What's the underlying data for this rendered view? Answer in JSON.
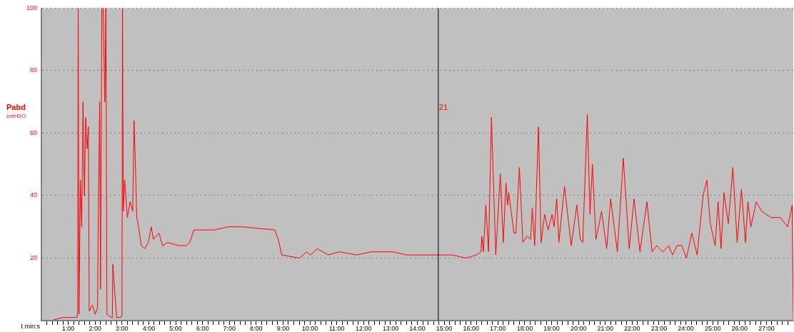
{
  "chart_data": {
    "type": "line",
    "ylabel": "Pabd",
    "xlabel": "t min:s",
    "annotations": [
      "cmH2O",
      {
        "text": "21",
        "x": 14.78,
        "y": 68
      }
    ],
    "x": [
      0.36,
      0.8,
      1.0,
      1.32,
      1.35,
      1.37,
      1.4,
      1.45,
      1.5,
      1.55,
      1.6,
      1.65,
      1.7,
      1.75,
      1.78,
      1.9,
      2.0,
      2.09,
      2.12,
      2.17,
      2.2,
      2.25,
      2.3,
      2.36,
      2.4,
      2.44,
      2.6,
      2.64,
      2.66,
      2.8,
      2.97,
      3.0,
      3.02,
      3.05,
      3.1,
      3.2,
      3.3,
      3.4,
      3.45,
      3.5,
      3.55,
      3.6,
      3.72,
      3.85,
      3.98,
      4.09,
      4.17,
      4.38,
      4.51,
      4.7,
      5.1,
      5.41,
      5.52,
      5.68,
      6.42,
      6.96,
      7.49,
      8.69,
      8.82,
      8.95,
      9.61,
      9.88,
      10.01,
      10.28,
      10.68,
      11.08,
      11.75,
      12.28,
      13.08,
      13.61,
      14.41,
      14.78,
      15.3,
      15.82,
      16.2,
      16.37,
      16.4,
      16.46,
      16.55,
      16.65,
      16.76,
      16.92,
      17.09,
      17.2,
      17.3,
      17.36,
      17.4,
      17.6,
      17.67,
      17.8,
      17.93,
      18.09,
      18.22,
      18.28,
      18.37,
      18.51,
      18.61,
      18.74,
      18.87,
      19.02,
      19.09,
      19.19,
      19.27,
      19.48,
      19.73,
      19.94,
      20.07,
      20.16,
      20.33,
      20.43,
      20.52,
      20.65,
      20.77,
      20.86,
      21.05,
      21.2,
      21.45,
      21.67,
      21.89,
      22.07,
      22.29,
      22.55,
      22.74,
      22.92,
      23.14,
      23.36,
      23.5,
      23.67,
      23.85,
      24.02,
      24.22,
      24.42,
      24.64,
      24.78,
      24.91,
      25.09,
      25.2,
      25.31,
      25.42,
      25.58,
      25.75,
      25.91,
      26.07,
      26.22,
      26.31,
      26.42,
      26.62,
      26.82,
      27.17,
      27.52,
      27.79,
      27.96,
      28.0
    ],
    "series": [
      {
        "color": "#ff0000",
        "values": [
          0,
          1,
          1,
          1,
          3,
          100,
          2,
          45,
          30,
          70,
          40,
          65,
          55,
          62,
          3,
          5,
          2,
          4,
          35,
          70,
          10,
          100,
          100,
          70,
          100,
          2,
          1,
          1,
          18,
          1,
          1,
          2,
          100,
          35,
          45,
          33,
          38,
          35,
          64,
          50,
          33,
          31,
          24,
          23,
          25,
          30,
          26,
          28,
          24,
          25,
          24,
          24,
          25,
          29,
          29,
          30,
          30,
          29,
          26,
          21,
          20,
          22,
          21,
          23,
          21,
          22,
          21,
          22,
          22,
          21,
          21,
          21,
          21,
          20,
          21,
          22,
          27,
          22,
          37,
          22,
          65,
          21,
          47,
          25,
          44,
          37,
          41,
          28,
          28,
          49,
          25,
          27,
          26,
          36,
          24,
          62,
          25,
          34,
          29,
          34,
          30,
          39,
          25,
          43,
          24,
          37,
          26,
          25,
          66,
          34,
          50,
          26,
          31,
          35,
          23,
          39,
          22,
          52,
          23,
          39,
          22,
          38,
          22,
          24,
          22,
          24,
          21,
          24,
          24,
          20,
          28,
          21,
          40,
          45,
          31,
          24,
          38,
          23,
          41,
          31,
          49,
          25,
          42,
          25,
          38,
          30,
          38,
          35,
          33,
          33,
          30,
          37,
          0
        ]
      }
    ],
    "xlim": [
      0,
      28
    ],
    "ylim": [
      0,
      100
    ],
    "yticks": [
      20,
      40,
      60,
      80,
      100
    ],
    "xticks": [
      {
        "value": 0.2,
        "label": null
      },
      {
        "value": 0.4,
        "label": null
      },
      {
        "value": 0.6,
        "label": null
      },
      {
        "value": 0.8,
        "label": null
      },
      {
        "value": 1,
        "label": "1:00"
      },
      {
        "value": 1.2,
        "label": null
      },
      {
        "value": 1.4,
        "label": null
      },
      {
        "value": 1.6,
        "label": null
      },
      {
        "value": 1.8,
        "label": null
      },
      {
        "value": 2,
        "label": "2:00"
      },
      {
        "value": 2.2,
        "label": null
      },
      {
        "value": 2.4,
        "label": null
      },
      {
        "value": 2.6,
        "label": null
      },
      {
        "value": 2.8,
        "label": null
      },
      {
        "value": 3,
        "label": "3:00"
      },
      {
        "value": 3.2,
        "label": null
      },
      {
        "value": 3.4,
        "label": null
      },
      {
        "value": 3.6,
        "label": null
      },
      {
        "value": 3.8,
        "label": null
      },
      {
        "value": 4,
        "label": "4:00"
      },
      {
        "value": 4.2,
        "label": null
      },
      {
        "value": 4.4,
        "label": null
      },
      {
        "value": 4.6,
        "label": null
      },
      {
        "value": 4.8,
        "label": null
      },
      {
        "value": 5,
        "label": "5:00"
      },
      {
        "value": 5.2,
        "label": null
      },
      {
        "value": 5.4,
        "label": null
      },
      {
        "value": 5.6,
        "label": null
      },
      {
        "value": 5.8,
        "label": null
      },
      {
        "value": 6,
        "label": "6:00"
      },
      {
        "value": 6.2,
        "label": null
      },
      {
        "value": 6.4,
        "label": null
      },
      {
        "value": 6.6,
        "label": null
      },
      {
        "value": 6.8,
        "label": null
      },
      {
        "value": 7,
        "label": "7:00"
      },
      {
        "value": 7.2,
        "label": null
      },
      {
        "value": 7.4,
        "label": null
      },
      {
        "value": 7.6,
        "label": null
      },
      {
        "value": 7.8,
        "label": null
      },
      {
        "value": 8,
        "label": "8:00"
      },
      {
        "value": 8.2,
        "label": null
      },
      {
        "value": 8.4,
        "label": null
      },
      {
        "value": 8.6,
        "label": null
      },
      {
        "value": 8.8,
        "label": null
      },
      {
        "value": 9,
        "label": "9:00"
      },
      {
        "value": 9.2,
        "label": null
      },
      {
        "value": 9.4,
        "label": null
      },
      {
        "value": 9.6,
        "label": null
      },
      {
        "value": 9.8,
        "label": null
      },
      {
        "value": 10,
        "label": "10:00"
      },
      {
        "value": 10.2,
        "label": null
      },
      {
        "value": 10.4,
        "label": null
      },
      {
        "value": 10.6,
        "label": null
      },
      {
        "value": 10.8,
        "label": null
      },
      {
        "value": 11,
        "label": "11:00"
      },
      {
        "value": 11.2,
        "label": null
      },
      {
        "value": 11.4,
        "label": null
      },
      {
        "value": 11.6,
        "label": null
      },
      {
        "value": 11.8,
        "label": null
      },
      {
        "value": 12,
        "label": "12:00"
      },
      {
        "value": 12.2,
        "label": null
      },
      {
        "value": 12.4,
        "label": null
      },
      {
        "value": 12.6,
        "label": null
      },
      {
        "value": 12.8,
        "label": null
      },
      {
        "value": 13,
        "label": "13:00"
      },
      {
        "value": 13.2,
        "label": null
      },
      {
        "value": 13.4,
        "label": null
      },
      {
        "value": 13.6,
        "label": null
      },
      {
        "value": 13.8,
        "label": null
      },
      {
        "value": 14,
        "label": "14:00"
      },
      {
        "value": 14.2,
        "label": null
      },
      {
        "value": 14.4,
        "label": null
      },
      {
        "value": 14.6,
        "label": null
      },
      {
        "value": 14.8,
        "label": null
      },
      {
        "value": 15,
        "label": "15:00"
      },
      {
        "value": 15.2,
        "label": null
      },
      {
        "value": 15.4,
        "label": null
      },
      {
        "value": 15.6,
        "label": null
      },
      {
        "value": 15.8,
        "label": null
      },
      {
        "value": 16,
        "label": "16:00"
      },
      {
        "value": 16.2,
        "label": null
      },
      {
        "value": 16.4,
        "label": null
      },
      {
        "value": 16.6,
        "label": null
      },
      {
        "value": 16.8,
        "label": null
      },
      {
        "value": 17,
        "label": "17:00"
      },
      {
        "value": 17.2,
        "label": null
      },
      {
        "value": 17.4,
        "label": null
      },
      {
        "value": 17.6,
        "label": null
      },
      {
        "value": 17.8,
        "label": null
      },
      {
        "value": 18,
        "label": "18:00"
      },
      {
        "value": 18.2,
        "label": null
      },
      {
        "value": 18.4,
        "label": null
      },
      {
        "value": 18.6,
        "label": null
      },
      {
        "value": 18.8,
        "label": null
      },
      {
        "value": 19,
        "label": "19:00"
      },
      {
        "value": 19.2,
        "label": null
      },
      {
        "value": 19.4,
        "label": null
      },
      {
        "value": 19.6,
        "label": null
      },
      {
        "value": 19.8,
        "label": null
      },
      {
        "value": 20,
        "label": "20:00"
      },
      {
        "value": 20.2,
        "label": null
      },
      {
        "value": 20.4,
        "label": null
      },
      {
        "value": 20.6,
        "label": null
      },
      {
        "value": 20.8,
        "label": null
      },
      {
        "value": 21,
        "label": "21:00"
      },
      {
        "value": 21.2,
        "label": null
      },
      {
        "value": 21.4,
        "label": null
      },
      {
        "value": 21.6,
        "label": null
      },
      {
        "value": 21.8,
        "label": null
      },
      {
        "value": 22,
        "label": "22:00"
      },
      {
        "value": 22.2,
        "label": null
      },
      {
        "value": 22.4,
        "label": null
      },
      {
        "value": 22.6,
        "label": null
      },
      {
        "value": 22.8,
        "label": null
      },
      {
        "value": 23,
        "label": "23:00"
      },
      {
        "value": 23.2,
        "label": null
      },
      {
        "value": 23.4,
        "label": null
      },
      {
        "value": 23.6,
        "label": null
      },
      {
        "value": 23.8,
        "label": null
      },
      {
        "value": 24,
        "label": "24:00"
      },
      {
        "value": 24.2,
        "label": null
      },
      {
        "value": 24.4,
        "label": null
      },
      {
        "value": 24.6,
        "label": null
      },
      {
        "value": 24.8,
        "label": null
      },
      {
        "value": 25,
        "label": "25:00"
      },
      {
        "value": 25.2,
        "label": null
      },
      {
        "value": 25.4,
        "label": null
      },
      {
        "value": 25.6,
        "label": null
      },
      {
        "value": 25.8,
        "label": null
      },
      {
        "value": 26,
        "label": "26:00"
      },
      {
        "value": 26.2,
        "label": null
      },
      {
        "value": 26.4,
        "label": null
      },
      {
        "value": 26.6,
        "label": null
      },
      {
        "value": 26.8,
        "label": null
      },
      {
        "value": 27,
        "label": "27:00"
      },
      {
        "value": 27.2,
        "label": null
      },
      {
        "value": 27.4,
        "label": null
      },
      {
        "value": 27.6,
        "label": null
      },
      {
        "value": 27.8,
        "label": null
      }
    ],
    "ref_lines": [
      {
        "axis": "x",
        "value": 14.78,
        "color": "#000000"
      }
    ],
    "grid": "y",
    "legend": false,
    "marker": "none",
    "line_style": "solid"
  }
}
